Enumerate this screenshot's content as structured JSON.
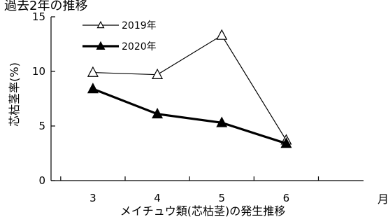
{
  "chart_data": {
    "type": "line",
    "title": "過去2年の推移",
    "xlabel": "メイチュウ類(芯枯茎)の発生推移",
    "x_unit": "月",
    "ylabel": "芯枯茎率(%)",
    "categories": [
      "3",
      "4",
      "5",
      "6"
    ],
    "ylim": [
      0,
      15
    ],
    "yticks": [
      "0",
      "5",
      "10",
      "15"
    ],
    "series": [
      {
        "name": "2019年",
        "marker": "open-triangle",
        "line": "thin",
        "color": "#000000",
        "values": [
          9.9,
          9.7,
          13.3,
          3.7
        ]
      },
      {
        "name": "2020年",
        "marker": "filled-triangle",
        "line": "thick",
        "color": "#000000",
        "values": [
          8.4,
          6.1,
          5.3,
          3.4
        ]
      }
    ],
    "legend_position": "top-left",
    "grid": false
  }
}
